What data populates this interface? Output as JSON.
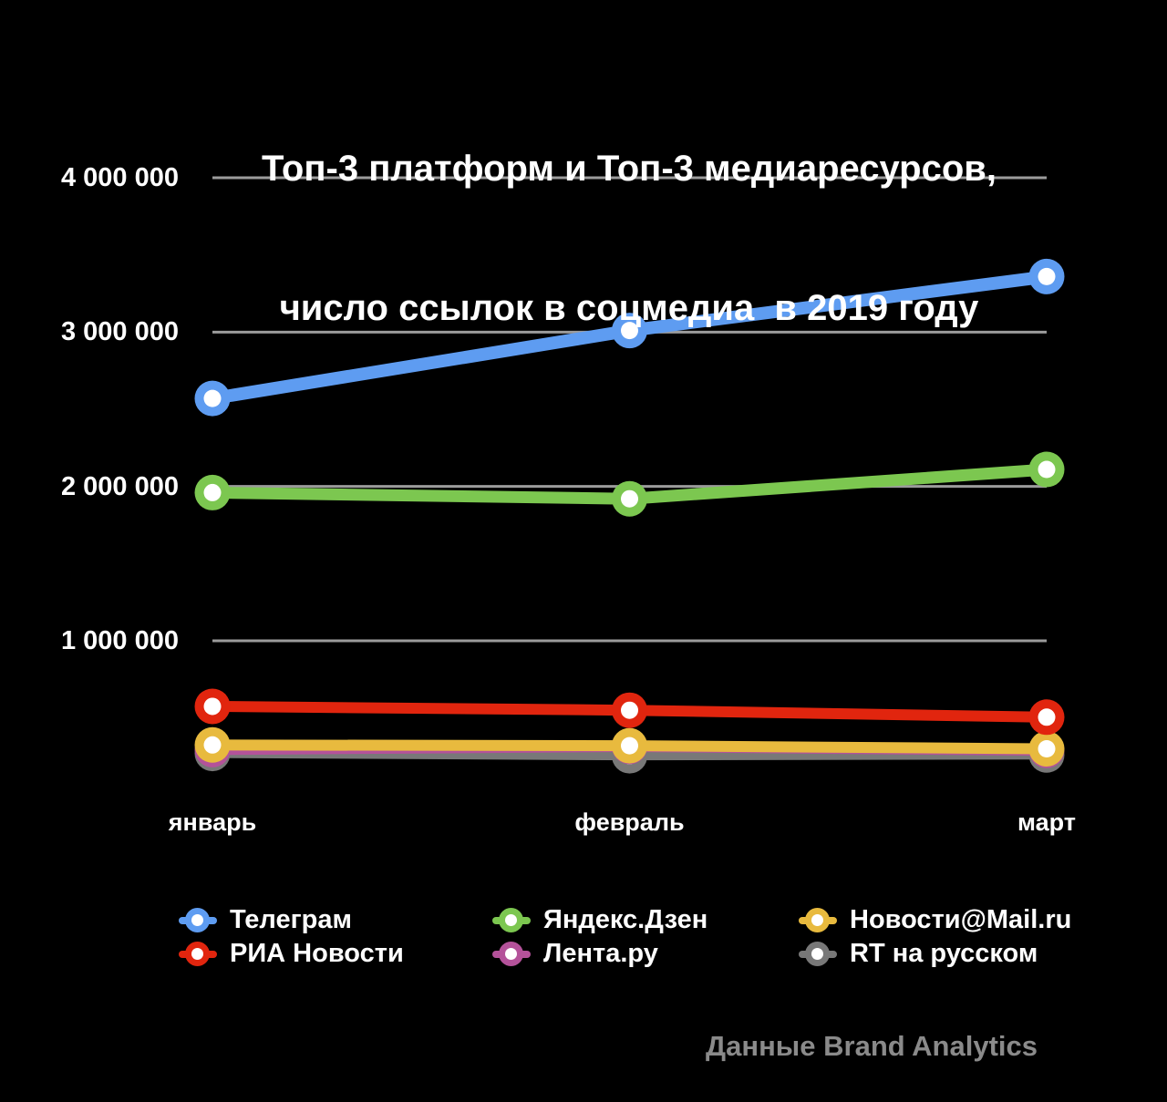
{
  "title": {
    "line1": "Топ-3 платформ и Топ-3 медиаресурсов,",
    "line2": "число ссылок в соцмедиа  в 2019 году"
  },
  "chart_data": {
    "type": "line",
    "title": "Топ-3 платформ и Топ-3 медиаресурсов, число ссылок в соцмедиа в 2019 году",
    "categories": [
      "январь",
      "февраль",
      "март"
    ],
    "series": [
      {
        "id": "telegram",
        "name": "Телеграм",
        "color": "#5e9cf1",
        "values": [
          2570000,
          3010000,
          3360000
        ]
      },
      {
        "id": "yandex-zen",
        "name": "Яндекс.Дзен",
        "color": "#7cc750",
        "values": [
          1960000,
          1920000,
          2110000
        ]
      },
      {
        "id": "mail-news",
        "name": "Новости@Mail.ru",
        "color": "#e8ba3e",
        "values": [
          325000,
          320000,
          300000
        ]
      },
      {
        "id": "ria-news",
        "name": "РИА Новости",
        "color": "#e1250e",
        "values": [
          575000,
          550000,
          505000
        ]
      },
      {
        "id": "lenta-ru",
        "name": "Лента.ру",
        "color": "#b4529a",
        "values": [
          295000,
          315000,
          290000
        ]
      },
      {
        "id": "rt-russian",
        "name": "RT на русском",
        "color": "#787878",
        "values": [
          270000,
          255000,
          260000
        ]
      }
    ],
    "ylim": [
      0,
      4000000
    ],
    "yticks": [
      {
        "value": 4000000,
        "label": "4 000 000"
      },
      {
        "value": 3000000,
        "label": "3 000 000"
      },
      {
        "value": 2000000,
        "label": "2 000 000"
      },
      {
        "value": 1000000,
        "label": "1 000 000"
      }
    ],
    "grid": "horizontal",
    "legend_position": "bottom"
  },
  "legend": {
    "columns": [
      [
        0,
        3
      ],
      [
        1,
        4
      ],
      [
        2,
        5
      ]
    ]
  },
  "footer": {
    "credit": "Данные Brand Analytics"
  },
  "colors": {
    "background": "#000000",
    "text": "#ffffff",
    "gridline": "#9b9b9b",
    "credit": "#8a8a8a",
    "point_center": "#ffffff"
  }
}
